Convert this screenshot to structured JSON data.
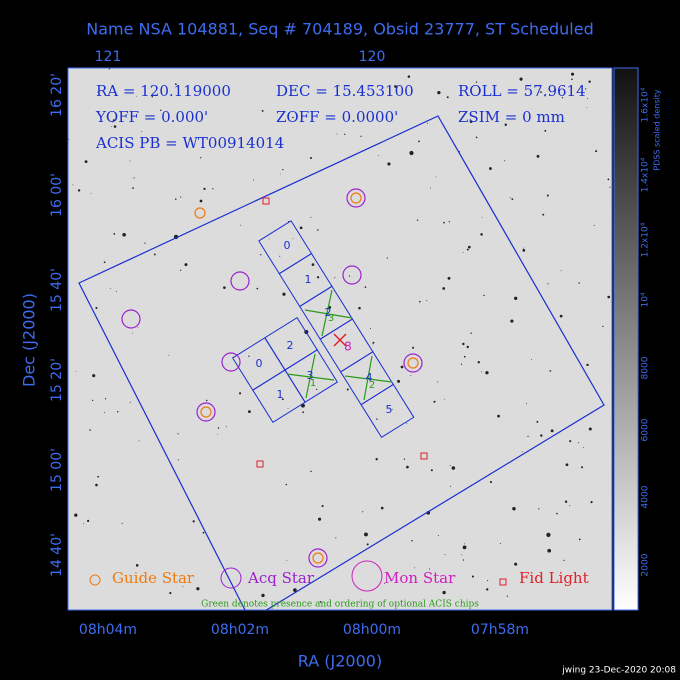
{
  "header": {
    "title": "Name NSA 104881, Seq # 704189, Obsid 23777, ST Scheduled"
  },
  "axes": {
    "top_labels": [
      "121",
      "120"
    ],
    "left_labels": [
      "16 20'",
      "16 00'",
      "15 40'",
      "15 20'",
      "15 00'",
      "14 40'"
    ],
    "bottom_labels": [
      "08h04m",
      "08h02m",
      "08h00m",
      "07h58m"
    ],
    "x_title": "RA (J2000)",
    "y_title": "Dec (J2000)"
  },
  "colorbar": {
    "labels": [
      "2000",
      "4000",
      "6000",
      "8000",
      "10⁴",
      "1.2x10⁴",
      "1.4x10⁴",
      "1.6x10⁴"
    ],
    "title": "PDSS scaled density"
  },
  "info": [
    "RA = 120.119000",
    "DEC = 15.453100",
    "ROLL = 57.9614",
    "YOFF =   0.000'",
    "ZOFF =  0.0000'",
    "ZSIM = 0 mm",
    "ACIS PB = WT00914014"
  ],
  "chips": {
    "strip_labels": [
      "0",
      "1",
      "2",
      "4",
      "5"
    ],
    "block_labels": [
      "0",
      "2",
      "1",
      "3"
    ],
    "optional_labels": [
      "3",
      "1",
      "2"
    ],
    "target_label": "8"
  },
  "legend": [
    "Guide Star",
    "Acq Star",
    "Mon Star",
    "Fid Light"
  ],
  "footnote": "Green denotes presence and ordering of optional ACIS chips",
  "stamp": "jwing 23-Dec-2020 20:08"
}
